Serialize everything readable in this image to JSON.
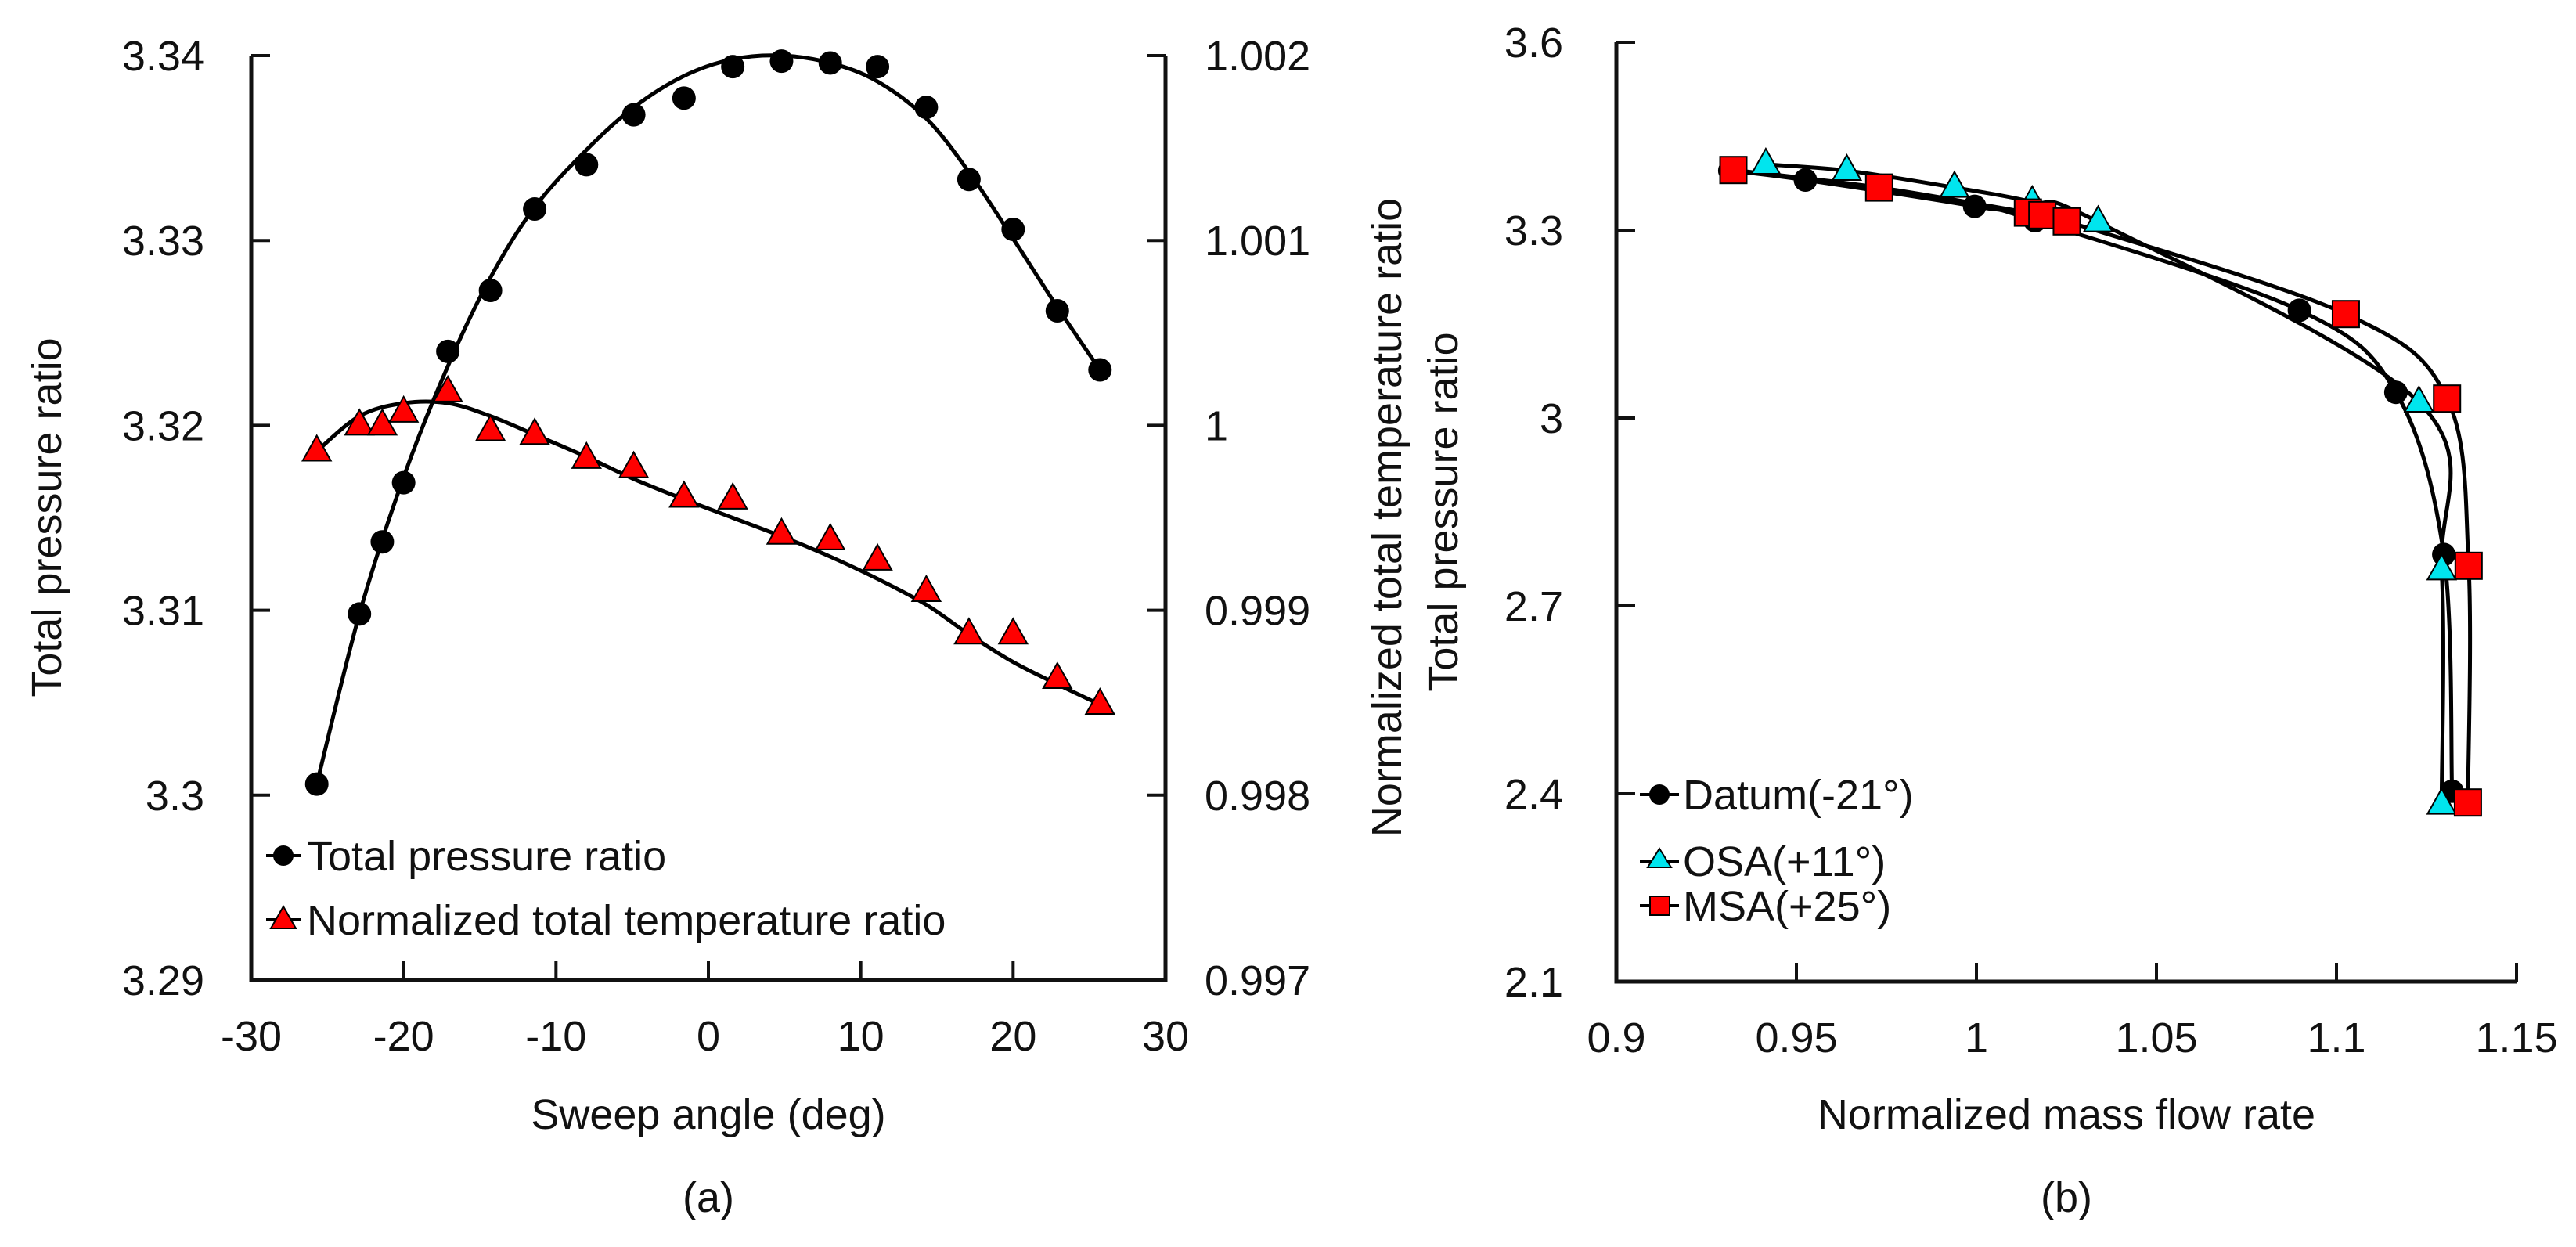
{
  "chart_data": [
    {
      "id": "a",
      "type": "line",
      "caption": "(a)",
      "xlabel": "Sweep angle (deg)",
      "ylabel": "Total pressure ratio",
      "y2label": "Normalized total temperature ratio",
      "xlim": [
        -30,
        30
      ],
      "ylim": [
        3.29,
        3.34
      ],
      "y2lim": [
        0.997,
        1.002
      ],
      "xticks": [
        "-30",
        "-20",
        "-10",
        "0",
        "10",
        "20",
        "30"
      ],
      "yticks": [
        "3.29",
        "3.3",
        "3.31",
        "3.32",
        "3.33",
        "3.34"
      ],
      "y2ticks": [
        "0.997",
        "0.998",
        "0.999",
        "1",
        "1.001",
        "1.002"
      ],
      "grid": false,
      "legend_position": "bottom-left",
      "series": [
        {
          "name": "Total pressure ratio",
          "axis": "left",
          "marker": "circle",
          "color": "#000000",
          "points": [
            [
              -25.7,
              3.3006
            ],
            [
              -22.9,
              3.3098
            ],
            [
              -21.4,
              3.3137
            ],
            [
              -20.0,
              3.3169
            ],
            [
              -17.1,
              3.324
            ],
            [
              -14.3,
              3.3273
            ],
            [
              -11.4,
              3.3317
            ],
            [
              -8.0,
              3.3341
            ],
            [
              -4.9,
              3.3368
            ],
            [
              -1.6,
              3.3377
            ],
            [
              1.6,
              3.3394
            ],
            [
              4.8,
              3.3397
            ],
            [
              8.0,
              3.3396
            ],
            [
              11.1,
              3.3394
            ],
            [
              14.3,
              3.3372
            ],
            [
              17.1,
              3.3333
            ],
            [
              20.0,
              3.3306
            ],
            [
              22.9,
              3.3262
            ],
            [
              25.7,
              3.323
            ]
          ]
        },
        {
          "name": "Normalized total temperature ratio",
          "axis": "right",
          "marker": "triangle",
          "color": "#ff0000",
          "points": [
            [
              -25.7,
              0.99986
            ],
            [
              -22.9,
              1.0
            ],
            [
              -21.4,
              1.0
            ],
            [
              -20.0,
              1.00007
            ],
            [
              -17.1,
              1.00018
            ],
            [
              -14.3,
              0.99997
            ],
            [
              -11.4,
              0.99995
            ],
            [
              -8.0,
              0.99982
            ],
            [
              -4.9,
              0.99977
            ],
            [
              -1.6,
              0.99961
            ],
            [
              1.6,
              0.9996
            ],
            [
              4.8,
              0.99941
            ],
            [
              8.0,
              0.99938
            ],
            [
              11.1,
              0.99927
            ],
            [
              14.3,
              0.9991
            ],
            [
              17.1,
              0.99887
            ],
            [
              20.0,
              0.99887
            ],
            [
              22.9,
              0.99863
            ],
            [
              25.7,
              0.99849
            ]
          ]
        }
      ],
      "fit_curves": {
        "left": [
          [
            -25.7,
            3.3006
          ],
          [
            -22.9,
            3.3098
          ],
          [
            -20.0,
            3.3172
          ],
          [
            -17.1,
            3.3232
          ],
          [
            -14.3,
            3.328
          ],
          [
            -11.4,
            3.3318
          ],
          [
            -8.0,
            3.3349
          ],
          [
            -4.9,
            3.3372
          ],
          [
            -1.6,
            3.3389
          ],
          [
            1.6,
            3.3398
          ],
          [
            4.8,
            3.34
          ],
          [
            8.0,
            3.3396
          ],
          [
            11.1,
            3.3386
          ],
          [
            14.3,
            3.3366
          ],
          [
            17.1,
            3.3337
          ],
          [
            20.0,
            3.3301
          ],
          [
            22.9,
            3.3264
          ],
          [
            25.7,
            3.323
          ]
        ],
        "right": [
          [
            -25.7,
            0.99986
          ],
          [
            -22.9,
            1.00005
          ],
          [
            -20.0,
            1.00012
          ],
          [
            -17.1,
            1.00012
          ],
          [
            -14.3,
            1.00005
          ],
          [
            -11.4,
            0.99995
          ],
          [
            -8.0,
            0.99983
          ],
          [
            -4.9,
            0.99971
          ],
          [
            -1.6,
            0.9996
          ],
          [
            1.6,
            0.9995
          ],
          [
            4.8,
            0.9994
          ],
          [
            8.0,
            0.99929
          ],
          [
            11.1,
            0.99917
          ],
          [
            14.3,
            0.99903
          ],
          [
            17.1,
            0.99887
          ],
          [
            20.0,
            0.99872
          ],
          [
            22.9,
            0.9986
          ],
          [
            25.7,
            0.99849
          ]
        ]
      }
    },
    {
      "id": "b",
      "type": "line",
      "caption": "(b)",
      "xlabel": "Normalized mass flow rate",
      "ylabel": "Total pressure ratio",
      "xlim": [
        0.9,
        1.15
      ],
      "ylim": [
        2.1,
        3.6
      ],
      "xticks": [
        "0.9",
        "0.95",
        "1",
        "1.05",
        "1.1",
        "1.15"
      ],
      "yticks": [
        "2.1",
        "2.4",
        "2.7",
        "3",
        "3.3",
        "3.6"
      ],
      "grid": false,
      "legend_position": "bottom-left",
      "series": [
        {
          "name": "Datum(-21°)",
          "marker": "circle",
          "color": "#000000",
          "points": [
            [
              0.9315,
              3.395
            ],
            [
              0.9525,
              3.38
            ],
            [
              0.9995,
              3.338
            ],
            [
              1.0163,
              3.315
            ],
            [
              1.0897,
              3.172
            ],
            [
              1.1165,
              3.041
            ],
            [
              1.1298,
              2.782
            ],
            [
              1.1321,
              2.404
            ]
          ]
        },
        {
          "name": "OSA(+11°)",
          "marker": "triangle",
          "color": "#00e5ee",
          "points": [
            [
              0.9415,
              3.405
            ],
            [
              0.964,
              3.395
            ],
            [
              0.9939,
              3.368
            ],
            [
              1.0155,
              3.345
            ],
            [
              1.0338,
              3.313
            ],
            [
              1.1229,
              3.025
            ],
            [
              1.1292,
              2.757
            ],
            [
              1.1292,
              2.383
            ]
          ]
        },
        {
          "name": "MSA(+25°)",
          "marker": "square",
          "color": "#ff0000",
          "points": [
            [
              0.9325,
              3.396
            ],
            [
              0.973,
              3.368
            ],
            [
              1.0143,
              3.328
            ],
            [
              1.0183,
              3.324
            ],
            [
              1.0251,
              3.314
            ],
            [
              1.1026,
              3.166
            ],
            [
              1.1307,
              3.031
            ],
            [
              1.1367,
              2.764
            ],
            [
              1.1365,
              2.386
            ]
          ]
        }
      ]
    }
  ]
}
